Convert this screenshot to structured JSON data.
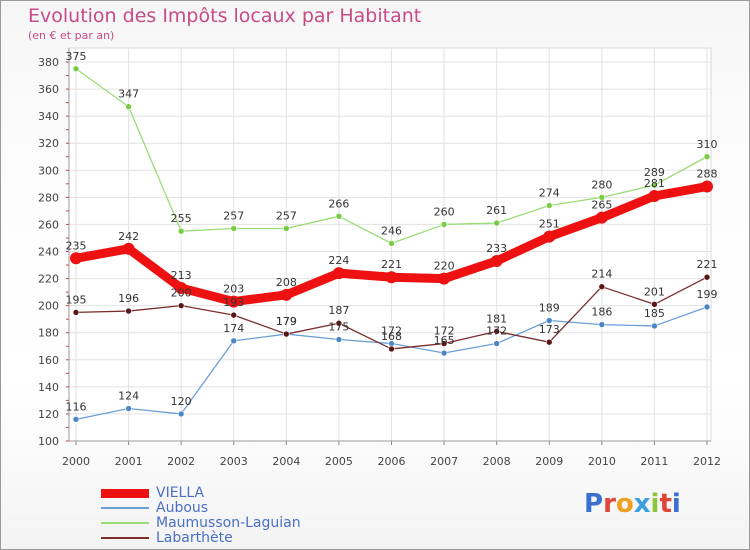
{
  "header": {
    "title": "Evolution des Impôts locaux par Habitant",
    "subtitle": "(en € et par an)"
  },
  "chart_data": {
    "type": "line",
    "title": "Evolution des Impôts locaux par Habitant",
    "subtitle": "(en € et par an)",
    "xlabel": "",
    "ylabel": "",
    "x": [
      "2000",
      "2001",
      "2002",
      "2003",
      "2004",
      "2005",
      "2006",
      "2007",
      "2008",
      "2009",
      "2010",
      "2011",
      "2012"
    ],
    "ylim": [
      100,
      380
    ],
    "yticks": [
      100,
      120,
      140,
      160,
      180,
      200,
      220,
      240,
      260,
      280,
      300,
      320,
      340,
      360,
      380
    ],
    "grid": true,
    "legend_position": "bottom-left",
    "series": [
      {
        "name": "VIELLA",
        "color": "#ee1111",
        "values": [
          235,
          242,
          213,
          203,
          208,
          224,
          221,
          220,
          233,
          251,
          265,
          281,
          288
        ]
      },
      {
        "name": "Aubous",
        "color": "#6b9fd6",
        "values": [
          116,
          124,
          120,
          174,
          179,
          175,
          172,
          165,
          172,
          189,
          186,
          185,
          199
        ]
      },
      {
        "name": "Maumusson-Laguian",
        "color": "#99dd77",
        "values": [
          375,
          347,
          255,
          257,
          257,
          266,
          246,
          260,
          261,
          274,
          280,
          289,
          310
        ]
      },
      {
        "name": "Labarthète",
        "color": "#7a2e2e",
        "values": [
          195,
          196,
          200,
          193,
          179,
          187,
          168,
          172,
          181,
          173,
          214,
          201,
          221
        ]
      }
    ]
  },
  "logo": {
    "text": "Proxiti",
    "letters": [
      {
        "ch": "P",
        "color": "#3a6fd0"
      },
      {
        "ch": "r",
        "color": "#e0453a"
      },
      {
        "ch": "o",
        "color": "#f0a020"
      },
      {
        "ch": "x",
        "color": "#3aa0e0"
      },
      {
        "ch": "i",
        "color": "#8cc63e"
      },
      {
        "ch": "t",
        "color": "#e0453a"
      },
      {
        "ch": "i",
        "color": "#3a6fd0"
      }
    ]
  }
}
